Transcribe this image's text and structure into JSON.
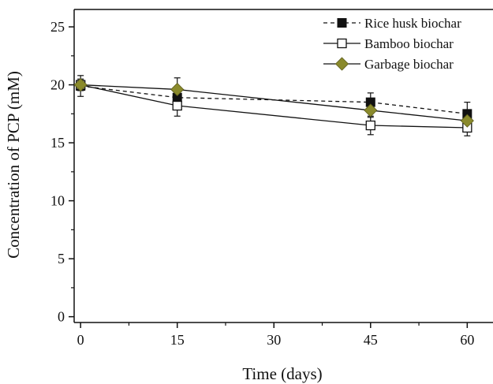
{
  "chart_data": {
    "type": "line",
    "title": "",
    "xlabel": "Time (days)",
    "ylabel": "Concentration of PCP (mM)",
    "xlim": [
      -1,
      64
    ],
    "ylim": [
      -0.5,
      26.5
    ],
    "xticks": [
      0,
      15,
      30,
      45,
      60
    ],
    "yticks": [
      0,
      5,
      10,
      15,
      20,
      25
    ],
    "grid": false,
    "legend_position": "top-right",
    "x": [
      0,
      15,
      45,
      60
    ],
    "series": [
      {
        "name": "Rice husk biochar",
        "values": [
          19.9,
          18.9,
          18.5,
          17.5
        ],
        "errors": [
          0.9,
          0.5,
          0.8,
          1.0
        ],
        "marker": "filled-square",
        "line_style": "dashed",
        "color": "#111111"
      },
      {
        "name": "Bamboo biochar",
        "values": [
          20.0,
          18.2,
          16.5,
          16.3
        ],
        "errors": [
          0.5,
          0.9,
          0.8,
          0.7
        ],
        "marker": "open-square",
        "line_style": "solid",
        "color": "#111111"
      },
      {
        "name": "Garbage biochar",
        "values": [
          20.0,
          19.6,
          17.8,
          16.9
        ],
        "errors": [
          0.4,
          1.0,
          0.6,
          0.5
        ],
        "marker": "diamond",
        "line_style": "solid",
        "color": "#8a8a2c"
      }
    ]
  }
}
